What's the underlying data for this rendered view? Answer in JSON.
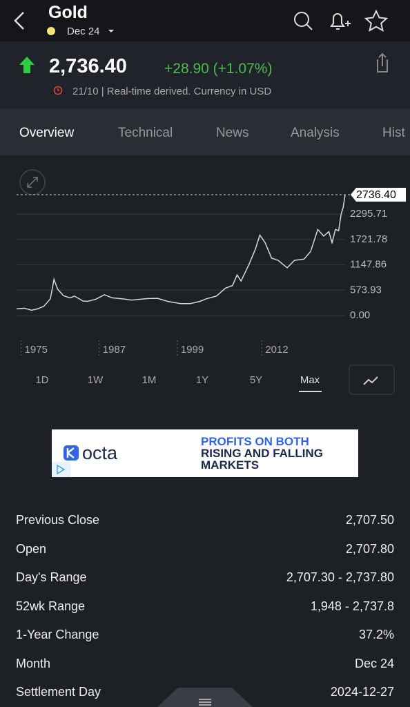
{
  "header": {
    "title": "Gold",
    "contract": "Dec 24"
  },
  "quote": {
    "price": "2,736.40",
    "change": "+28.90 (+1.07%)",
    "note": "21/10 | Real-time derived. Currency in USD"
  },
  "tabs": [
    "Overview",
    "Technical",
    "News",
    "Analysis",
    "Hist"
  ],
  "chart_data": {
    "type": "line",
    "color": "#d8d8d8",
    "x": [
      1974.3,
      1975.5,
      1976.6,
      1977.5,
      1978.5,
      1979.5,
      1980.05,
      1980.6,
      1981.5,
      1982.5,
      1983.2,
      1984.5,
      1985.2,
      1986.5,
      1987.8,
      1989,
      1990.5,
      1992,
      1993.5,
      1994.5,
      1996,
      1997.5,
      1999.5,
      2001,
      2002.5,
      2003.5,
      2005,
      2006.4,
      2007.5,
      2008.2,
      2008.8,
      2010,
      2011,
      2011.7,
      2012.5,
      2013.5,
      2014.5,
      2015.9,
      2017,
      2018.5,
      2019.5,
      2020.6,
      2021.5,
      2022.3,
      2022.8,
      2023.3,
      2023.8,
      2024.2,
      2024.5,
      2024.8
    ],
    "values": [
      150,
      165,
      120,
      150,
      210,
      380,
      820,
      600,
      450,
      400,
      440,
      330,
      320,
      370,
      470,
      400,
      380,
      350,
      370,
      385,
      390,
      320,
      270,
      270,
      320,
      380,
      440,
      620,
      680,
      920,
      780,
      1150,
      1500,
      1820,
      1650,
      1300,
      1250,
      1080,
      1250,
      1280,
      1450,
      1950,
      1800,
      1900,
      1650,
      1950,
      1920,
      2300,
      2450,
      2736.4
    ],
    "ylim": [
      0,
      2869.64
    ],
    "yticks": [
      {
        "value": 0,
        "label": "0.00"
      },
      573.93,
      1147.86,
      1721.78,
      2295.71
    ],
    "xlim": [
      1974.3,
      2024.8
    ],
    "xticks": [
      1975,
      1987,
      1999,
      2012
    ],
    "price_line": {
      "value": 2736.4,
      "label": "2736.40"
    },
    "grid": true
  },
  "ranges": [
    "1D",
    "1W",
    "1M",
    "1Y",
    "5Y",
    "Max"
  ],
  "active_range": 5,
  "ad": {
    "brand": "octa",
    "headline": [
      "PROFITS ON BOTH",
      "RISING AND FALLING",
      "MARKETS"
    ]
  },
  "stats": [
    {
      "label": "Previous Close",
      "value": "2,707.50"
    },
    {
      "label": "Open",
      "value": "2,707.80"
    },
    {
      "label": "Day's Range",
      "value": "2,707.30 - 2,737.80"
    },
    {
      "label": "52wk Range",
      "value": "1,948 - 2,737.8"
    },
    {
      "label": "1-Year Change",
      "value": "37.2%"
    },
    {
      "label": "Month",
      "value": "Dec 24"
    },
    {
      "label": "Settlement Day",
      "value": "2024-12-27"
    }
  ]
}
